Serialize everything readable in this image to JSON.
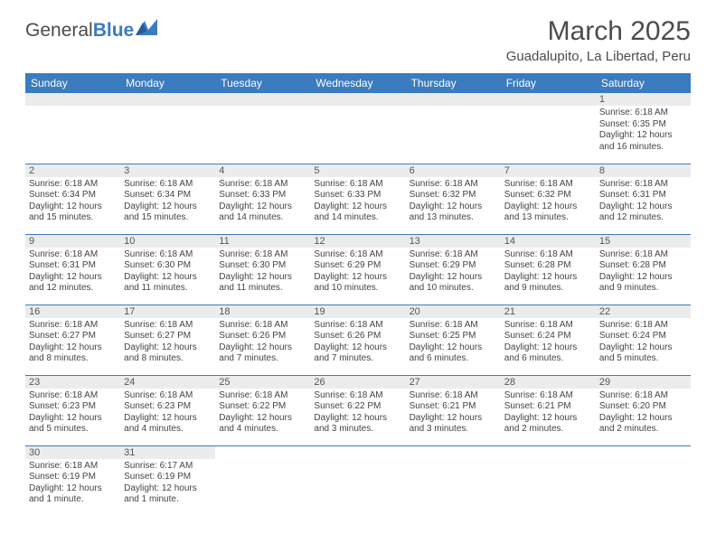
{
  "logo": {
    "textGray": "General",
    "textBlue": "Blue"
  },
  "title": "March 2025",
  "location": "Guadalupito, La Libertad, Peru",
  "colors": {
    "headerBg": "#3b7bbf",
    "headerText": "#ffffff",
    "dayNumBg": "#ececec",
    "cellBorder": "#3b7bbf",
    "bodyText": "#444444",
    "titleText": "#4c4c4c"
  },
  "dayHeaders": [
    "Sunday",
    "Monday",
    "Tuesday",
    "Wednesday",
    "Thursday",
    "Friday",
    "Saturday"
  ],
  "weeks": [
    [
      null,
      null,
      null,
      null,
      null,
      null,
      {
        "n": "1",
        "sr": "Sunrise: 6:18 AM",
        "ss": "Sunset: 6:35 PM",
        "dl": "Daylight: 12 hours and 16 minutes."
      }
    ],
    [
      {
        "n": "2",
        "sr": "Sunrise: 6:18 AM",
        "ss": "Sunset: 6:34 PM",
        "dl": "Daylight: 12 hours and 15 minutes."
      },
      {
        "n": "3",
        "sr": "Sunrise: 6:18 AM",
        "ss": "Sunset: 6:34 PM",
        "dl": "Daylight: 12 hours and 15 minutes."
      },
      {
        "n": "4",
        "sr": "Sunrise: 6:18 AM",
        "ss": "Sunset: 6:33 PM",
        "dl": "Daylight: 12 hours and 14 minutes."
      },
      {
        "n": "5",
        "sr": "Sunrise: 6:18 AM",
        "ss": "Sunset: 6:33 PM",
        "dl": "Daylight: 12 hours and 14 minutes."
      },
      {
        "n": "6",
        "sr": "Sunrise: 6:18 AM",
        "ss": "Sunset: 6:32 PM",
        "dl": "Daylight: 12 hours and 13 minutes."
      },
      {
        "n": "7",
        "sr": "Sunrise: 6:18 AM",
        "ss": "Sunset: 6:32 PM",
        "dl": "Daylight: 12 hours and 13 minutes."
      },
      {
        "n": "8",
        "sr": "Sunrise: 6:18 AM",
        "ss": "Sunset: 6:31 PM",
        "dl": "Daylight: 12 hours and 12 minutes."
      }
    ],
    [
      {
        "n": "9",
        "sr": "Sunrise: 6:18 AM",
        "ss": "Sunset: 6:31 PM",
        "dl": "Daylight: 12 hours and 12 minutes."
      },
      {
        "n": "10",
        "sr": "Sunrise: 6:18 AM",
        "ss": "Sunset: 6:30 PM",
        "dl": "Daylight: 12 hours and 11 minutes."
      },
      {
        "n": "11",
        "sr": "Sunrise: 6:18 AM",
        "ss": "Sunset: 6:30 PM",
        "dl": "Daylight: 12 hours and 11 minutes."
      },
      {
        "n": "12",
        "sr": "Sunrise: 6:18 AM",
        "ss": "Sunset: 6:29 PM",
        "dl": "Daylight: 12 hours and 10 minutes."
      },
      {
        "n": "13",
        "sr": "Sunrise: 6:18 AM",
        "ss": "Sunset: 6:29 PM",
        "dl": "Daylight: 12 hours and 10 minutes."
      },
      {
        "n": "14",
        "sr": "Sunrise: 6:18 AM",
        "ss": "Sunset: 6:28 PM",
        "dl": "Daylight: 12 hours and 9 minutes."
      },
      {
        "n": "15",
        "sr": "Sunrise: 6:18 AM",
        "ss": "Sunset: 6:28 PM",
        "dl": "Daylight: 12 hours and 9 minutes."
      }
    ],
    [
      {
        "n": "16",
        "sr": "Sunrise: 6:18 AM",
        "ss": "Sunset: 6:27 PM",
        "dl": "Daylight: 12 hours and 8 minutes."
      },
      {
        "n": "17",
        "sr": "Sunrise: 6:18 AM",
        "ss": "Sunset: 6:27 PM",
        "dl": "Daylight: 12 hours and 8 minutes."
      },
      {
        "n": "18",
        "sr": "Sunrise: 6:18 AM",
        "ss": "Sunset: 6:26 PM",
        "dl": "Daylight: 12 hours and 7 minutes."
      },
      {
        "n": "19",
        "sr": "Sunrise: 6:18 AM",
        "ss": "Sunset: 6:26 PM",
        "dl": "Daylight: 12 hours and 7 minutes."
      },
      {
        "n": "20",
        "sr": "Sunrise: 6:18 AM",
        "ss": "Sunset: 6:25 PM",
        "dl": "Daylight: 12 hours and 6 minutes."
      },
      {
        "n": "21",
        "sr": "Sunrise: 6:18 AM",
        "ss": "Sunset: 6:24 PM",
        "dl": "Daylight: 12 hours and 6 minutes."
      },
      {
        "n": "22",
        "sr": "Sunrise: 6:18 AM",
        "ss": "Sunset: 6:24 PM",
        "dl": "Daylight: 12 hours and 5 minutes."
      }
    ],
    [
      {
        "n": "23",
        "sr": "Sunrise: 6:18 AM",
        "ss": "Sunset: 6:23 PM",
        "dl": "Daylight: 12 hours and 5 minutes."
      },
      {
        "n": "24",
        "sr": "Sunrise: 6:18 AM",
        "ss": "Sunset: 6:23 PM",
        "dl": "Daylight: 12 hours and 4 minutes."
      },
      {
        "n": "25",
        "sr": "Sunrise: 6:18 AM",
        "ss": "Sunset: 6:22 PM",
        "dl": "Daylight: 12 hours and 4 minutes."
      },
      {
        "n": "26",
        "sr": "Sunrise: 6:18 AM",
        "ss": "Sunset: 6:22 PM",
        "dl": "Daylight: 12 hours and 3 minutes."
      },
      {
        "n": "27",
        "sr": "Sunrise: 6:18 AM",
        "ss": "Sunset: 6:21 PM",
        "dl": "Daylight: 12 hours and 3 minutes."
      },
      {
        "n": "28",
        "sr": "Sunrise: 6:18 AM",
        "ss": "Sunset: 6:21 PM",
        "dl": "Daylight: 12 hours and 2 minutes."
      },
      {
        "n": "29",
        "sr": "Sunrise: 6:18 AM",
        "ss": "Sunset: 6:20 PM",
        "dl": "Daylight: 12 hours and 2 minutes."
      }
    ],
    [
      {
        "n": "30",
        "sr": "Sunrise: 6:18 AM",
        "ss": "Sunset: 6:19 PM",
        "dl": "Daylight: 12 hours and 1 minute."
      },
      {
        "n": "31",
        "sr": "Sunrise: 6:17 AM",
        "ss": "Sunset: 6:19 PM",
        "dl": "Daylight: 12 hours and 1 minute."
      },
      null,
      null,
      null,
      null,
      null
    ]
  ]
}
